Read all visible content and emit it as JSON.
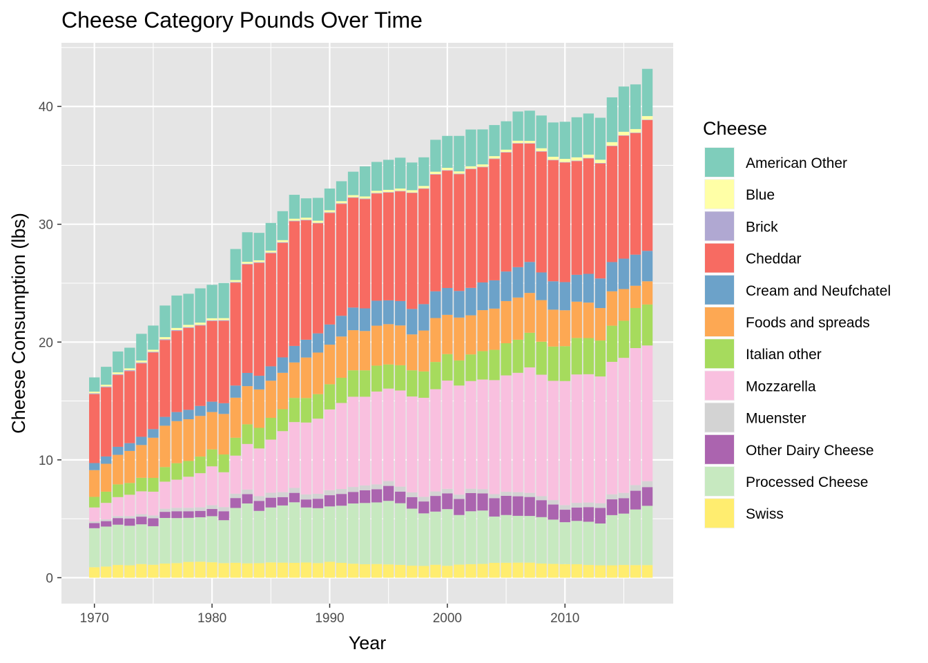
{
  "chart_data": {
    "type": "bar",
    "stacked": true,
    "title": "Cheese Category Pounds Over Time",
    "xlabel": "Year",
    "ylabel": "Cheese Consumption (lbs)",
    "xlim": [
      1967.2,
      2019.2
    ],
    "ylim": [
      -2.2,
      45.4
    ],
    "x_ticks": [
      1970,
      1980,
      1990,
      2000,
      2010
    ],
    "y_ticks": [
      0,
      10,
      20,
      30,
      40
    ],
    "grid": true,
    "legend": {
      "title": "Cheese",
      "placement": "right"
    },
    "years": [
      1970,
      1971,
      1972,
      1973,
      1974,
      1975,
      1976,
      1977,
      1978,
      1979,
      1980,
      1981,
      1982,
      1983,
      1984,
      1985,
      1986,
      1987,
      1988,
      1989,
      1990,
      1991,
      1992,
      1993,
      1994,
      1995,
      1996,
      1997,
      1998,
      1999,
      2000,
      2001,
      2002,
      2003,
      2004,
      2005,
      2006,
      2007,
      2008,
      2009,
      2010,
      2011,
      2012,
      2013,
      2014,
      2015,
      2016,
      2017
    ],
    "series": [
      {
        "name": "Swiss",
        "color": "#FFED6F",
        "values": [
          0.89,
          0.95,
          1.08,
          1.05,
          1.16,
          1.1,
          1.2,
          1.24,
          1.34,
          1.36,
          1.31,
          1.24,
          1.27,
          1.22,
          1.23,
          1.3,
          1.28,
          1.26,
          1.29,
          1.24,
          1.35,
          1.26,
          1.19,
          1.14,
          1.16,
          1.13,
          1.09,
          1.02,
          1.0,
          1.1,
          1.01,
          1.11,
          1.15,
          1.17,
          1.26,
          1.27,
          1.28,
          1.28,
          1.2,
          1.17,
          1.15,
          1.14,
          1.08,
          1.05,
          1.05,
          1.08,
          1.07,
          1.07
        ]
      },
      {
        "name": "Processed Cheese",
        "color": "#C7E9C0",
        "values": [
          3.31,
          3.39,
          3.42,
          3.36,
          3.37,
          3.27,
          3.87,
          3.82,
          3.74,
          3.77,
          3.91,
          3.64,
          4.65,
          5.08,
          4.44,
          4.66,
          4.85,
          5.14,
          4.67,
          4.66,
          4.7,
          4.85,
          5.11,
          5.2,
          5.23,
          5.39,
          5.23,
          4.84,
          4.46,
          4.51,
          4.81,
          4.21,
          4.49,
          4.53,
          3.93,
          4.05,
          3.97,
          3.96,
          3.94,
          3.76,
          3.56,
          3.68,
          3.67,
          3.55,
          4.26,
          4.36,
          4.72,
          5.03
        ]
      },
      {
        "name": "Other Dairy Cheese",
        "color": "#AB64AF",
        "values": [
          0.43,
          0.46,
          0.56,
          0.62,
          0.65,
          0.67,
          0.52,
          0.58,
          0.56,
          0.54,
          0.61,
          0.76,
          0.84,
          0.79,
          0.85,
          0.83,
          0.71,
          0.8,
          0.68,
          0.8,
          0.95,
          1.0,
          0.98,
          1.08,
          1.12,
          1.27,
          0.99,
          0.98,
          1.01,
          1.33,
          1.34,
          1.36,
          1.54,
          1.45,
          1.56,
          1.63,
          1.66,
          1.61,
          1.44,
          1.28,
          1.06,
          1.13,
          1.24,
          1.32,
          1.34,
          1.31,
          1.59,
          1.59
        ]
      },
      {
        "name": "Muenster",
        "color": "#D3D3D3",
        "values": [
          0.14,
          0.15,
          0.17,
          0.2,
          0.21,
          0.24,
          0.26,
          0.29,
          0.29,
          0.3,
          0.32,
          0.35,
          0.37,
          0.39,
          0.4,
          0.42,
          0.42,
          0.42,
          0.43,
          0.42,
          0.42,
          0.42,
          0.42,
          0.41,
          0.41,
          0.41,
          0.42,
          0.4,
          0.39,
          0.38,
          0.38,
          0.37,
          0.37,
          0.36,
          0.34,
          0.34,
          0.35,
          0.35,
          0.34,
          0.37,
          0.39,
          0.4,
          0.39,
          0.4,
          0.43,
          0.45,
          0.48,
          0.5
        ]
      },
      {
        "name": "Mozzarella",
        "color": "#F9C0DF",
        "values": [
          1.19,
          1.4,
          1.61,
          1.81,
          1.94,
          2.02,
          2.3,
          2.39,
          2.64,
          2.9,
          3.3,
          2.96,
          3.23,
          3.87,
          4.05,
          4.51,
          5.18,
          5.59,
          6.1,
          6.38,
          6.86,
          7.3,
          7.66,
          7.53,
          7.88,
          7.85,
          8.16,
          8.14,
          8.41,
          8.68,
          9.19,
          9.26,
          9.14,
          9.31,
          9.68,
          9.88,
          10.13,
          10.65,
          10.31,
          10.13,
          10.53,
          10.9,
          10.89,
          10.76,
          11.24,
          11.46,
          11.63,
          11.52
        ]
      },
      {
        "name": "Italian other",
        "color": "#A6DB5D",
        "values": [
          0.9,
          0.95,
          1.08,
          1.0,
          1.15,
          1.17,
          1.24,
          1.4,
          1.34,
          1.41,
          1.44,
          1.51,
          1.52,
          1.67,
          1.75,
          1.85,
          1.86,
          2.05,
          2.08,
          2.08,
          2.14,
          2.14,
          2.24,
          2.24,
          2.2,
          2.05,
          2.14,
          2.22,
          2.24,
          2.31,
          2.25,
          2.13,
          2.26,
          2.41,
          2.57,
          2.73,
          2.81,
          2.94,
          2.8,
          2.91,
          2.96,
          3.1,
          3.07,
          3.05,
          3.07,
          3.15,
          3.4,
          3.48
        ]
      },
      {
        "name": "Foods and spreads",
        "color": "#FDA853",
        "values": [
          2.27,
          2.37,
          2.51,
          2.72,
          2.78,
          3.41,
          3.51,
          3.57,
          3.54,
          3.45,
          3.17,
          3.44,
          3.4,
          3.24,
          3.26,
          3.15,
          3.09,
          3.01,
          3.44,
          3.53,
          3.36,
          3.5,
          3.41,
          3.34,
          3.39,
          3.42,
          3.38,
          3.05,
          3.47,
          3.73,
          3.33,
          3.64,
          3.32,
          3.48,
          3.5,
          3.58,
          3.58,
          3.38,
          3.53,
          3.13,
          3.05,
          3.08,
          3.01,
          2.76,
          2.92,
          2.69,
          1.89,
          1.97
        ]
      },
      {
        "name": "Cream and Neufchatel",
        "color": "#6CA2C9",
        "values": [
          0.6,
          0.62,
          0.68,
          0.66,
          0.7,
          0.73,
          0.75,
          0.77,
          0.8,
          0.85,
          0.88,
          0.91,
          1.03,
          1.12,
          1.16,
          1.22,
          1.31,
          1.4,
          1.51,
          1.63,
          1.71,
          1.76,
          1.92,
          1.92,
          2.12,
          2.02,
          2.07,
          2.16,
          2.24,
          2.27,
          2.28,
          2.26,
          2.33,
          2.35,
          2.4,
          2.51,
          2.58,
          2.63,
          2.35,
          2.41,
          2.39,
          2.28,
          2.44,
          2.51,
          2.48,
          2.58,
          2.64,
          2.58
        ]
      },
      {
        "name": "Cheddar",
        "color": "#F76B62",
        "values": [
          5.85,
          5.87,
          6.09,
          6.12,
          6.23,
          6.5,
          6.52,
          6.89,
          6.95,
          6.82,
          6.85,
          6.99,
          8.73,
          9.21,
          9.58,
          9.6,
          9.72,
          10.58,
          10.13,
          9.33,
          9.47,
          9.5,
          9.31,
          9.27,
          9.1,
          9.15,
          9.31,
          9.84,
          9.79,
          9.91,
          9.96,
          9.91,
          10.08,
          9.78,
          10.3,
          10.1,
          10.49,
          10.04,
          10.25,
          10.27,
          10.15,
          9.65,
          9.8,
          9.76,
          9.84,
          10.43,
          10.32,
          11.1
        ]
      },
      {
        "name": "Brick",
        "color": "#B0A8D2",
        "values": [
          0.07,
          0.07,
          0.07,
          0.07,
          0.07,
          0.07,
          0.07,
          0.07,
          0.07,
          0.06,
          0.06,
          0.06,
          0.06,
          0.06,
          0.06,
          0.06,
          0.06,
          0.05,
          0.05,
          0.05,
          0.05,
          0.05,
          0.05,
          0.05,
          0.05,
          0.04,
          0.04,
          0.04,
          0.04,
          0.04,
          0.04,
          0.04,
          0.04,
          0.04,
          0.04,
          0.04,
          0.04,
          0.04,
          0.04,
          0.04,
          0.04,
          0.04,
          0.04,
          0.04,
          0.04,
          0.04,
          0.04,
          0.04
        ]
      },
      {
        "name": "Blue",
        "color": "#FFFFA6",
        "values": [
          0.14,
          0.15,
          0.16,
          0.16,
          0.17,
          0.17,
          0.18,
          0.18,
          0.19,
          0.19,
          0.17,
          0.17,
          0.16,
          0.16,
          0.16,
          0.16,
          0.17,
          0.17,
          0.18,
          0.18,
          0.18,
          0.18,
          0.18,
          0.18,
          0.18,
          0.19,
          0.2,
          0.2,
          0.2,
          0.2,
          0.2,
          0.2,
          0.2,
          0.2,
          0.2,
          0.2,
          0.2,
          0.2,
          0.25,
          0.26,
          0.27,
          0.28,
          0.28,
          0.28,
          0.3,
          0.3,
          0.3,
          0.3
        ]
      },
      {
        "name": "American Other",
        "color": "#7FCDBB",
        "values": [
          1.21,
          1.52,
          1.77,
          1.75,
          2.27,
          2.05,
          2.68,
          2.75,
          2.64,
          2.91,
          2.84,
          2.98,
          2.64,
          2.51,
          2.33,
          2.35,
          2.46,
          2.03,
          1.64,
          1.94,
          1.84,
          1.69,
          1.99,
          2.55,
          2.45,
          2.55,
          2.62,
          2.35,
          2.43,
          2.71,
          2.71,
          3.01,
          3.12,
          2.97,
          2.64,
          2.41,
          2.48,
          2.56,
          2.78,
          2.91,
          3.15,
          3.4,
          3.49,
          3.56,
          3.8,
          3.84,
          3.79,
          4.01
        ]
      }
    ]
  }
}
